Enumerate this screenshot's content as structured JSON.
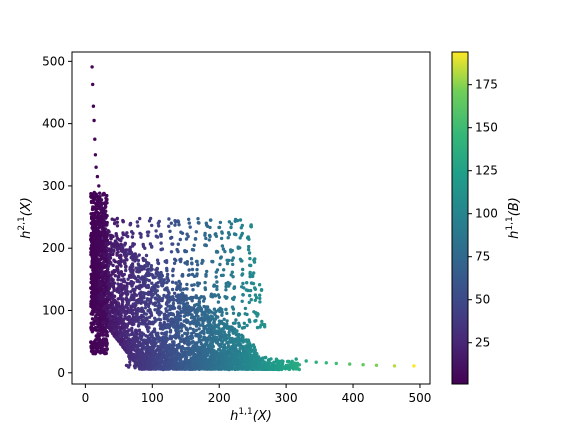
{
  "chart_data": {
    "type": "scatter",
    "title": "",
    "xlabel": {
      "base": "h",
      "sup": "1,1",
      "arg": "(X)"
    },
    "ylabel": {
      "base": "h",
      "sup": "2,1",
      "arg": "(X)"
    },
    "colorbar_label": {
      "base": "h",
      "sup": "1,1",
      "arg": "(B)"
    },
    "xlim": [
      -20,
      515
    ],
    "ylim": [
      -18,
      515
    ],
    "xticks": [
      0,
      100,
      200,
      300,
      400,
      500
    ],
    "yticks": [
      0,
      100,
      200,
      300,
      400,
      500
    ],
    "colorbar_ticks": [
      25,
      50,
      75,
      100,
      125,
      150,
      175
    ],
    "colorbar_range": [
      1,
      194
    ],
    "colormap": "viridis",
    "marker_color_by": "h11_B",
    "grid": false,
    "tail_points": [
      {
        "x": 10,
        "y": 491,
        "c": 2
      },
      {
        "x": 11,
        "y": 463,
        "c": 2
      },
      {
        "x": 12,
        "y": 428,
        "c": 2
      },
      {
        "x": 13,
        "y": 405,
        "c": 2
      },
      {
        "x": 14,
        "y": 375,
        "c": 3
      },
      {
        "x": 15,
        "y": 350,
        "c": 3
      },
      {
        "x": 16,
        "y": 330,
        "c": 3
      },
      {
        "x": 18,
        "y": 315,
        "c": 3
      },
      {
        "x": 20,
        "y": 300,
        "c": 4
      },
      {
        "x": 315,
        "y": 22,
        "c": 120
      },
      {
        "x": 330,
        "y": 19,
        "c": 130
      },
      {
        "x": 345,
        "y": 17,
        "c": 138
      },
      {
        "x": 360,
        "y": 16,
        "c": 145
      },
      {
        "x": 375,
        "y": 15,
        "c": 150
      },
      {
        "x": 395,
        "y": 14,
        "c": 158
      },
      {
        "x": 415,
        "y": 13,
        "c": 165
      },
      {
        "x": 435,
        "y": 12,
        "c": 172
      },
      {
        "x": 462,
        "y": 11,
        "c": 182
      },
      {
        "x": 491,
        "y": 11,
        "c": 194
      }
    ],
    "row_bands": [
      {
        "y": 250,
        "x_start": 40,
        "x_end": 252,
        "step": 12
      },
      {
        "y": 230,
        "x_start": 35,
        "x_end": 252,
        "step": 12
      },
      {
        "y": 210,
        "x_start": 30,
        "x_end": 252,
        "step": 12
      },
      {
        "y": 190,
        "x_start": 25,
        "x_end": 255,
        "step": 11
      },
      {
        "y": 170,
        "x_start": 22,
        "x_end": 255,
        "step": 10
      },
      {
        "y": 150,
        "x_start": 20,
        "x_end": 260,
        "step": 10
      },
      {
        "y": 130,
        "x_start": 18,
        "x_end": 262,
        "step": 9
      },
      {
        "y": 110,
        "x_start": 16,
        "x_end": 265,
        "step": 9
      },
      {
        "y": 90,
        "x_start": 15,
        "x_end": 268,
        "step": 8
      }
    ]
  }
}
